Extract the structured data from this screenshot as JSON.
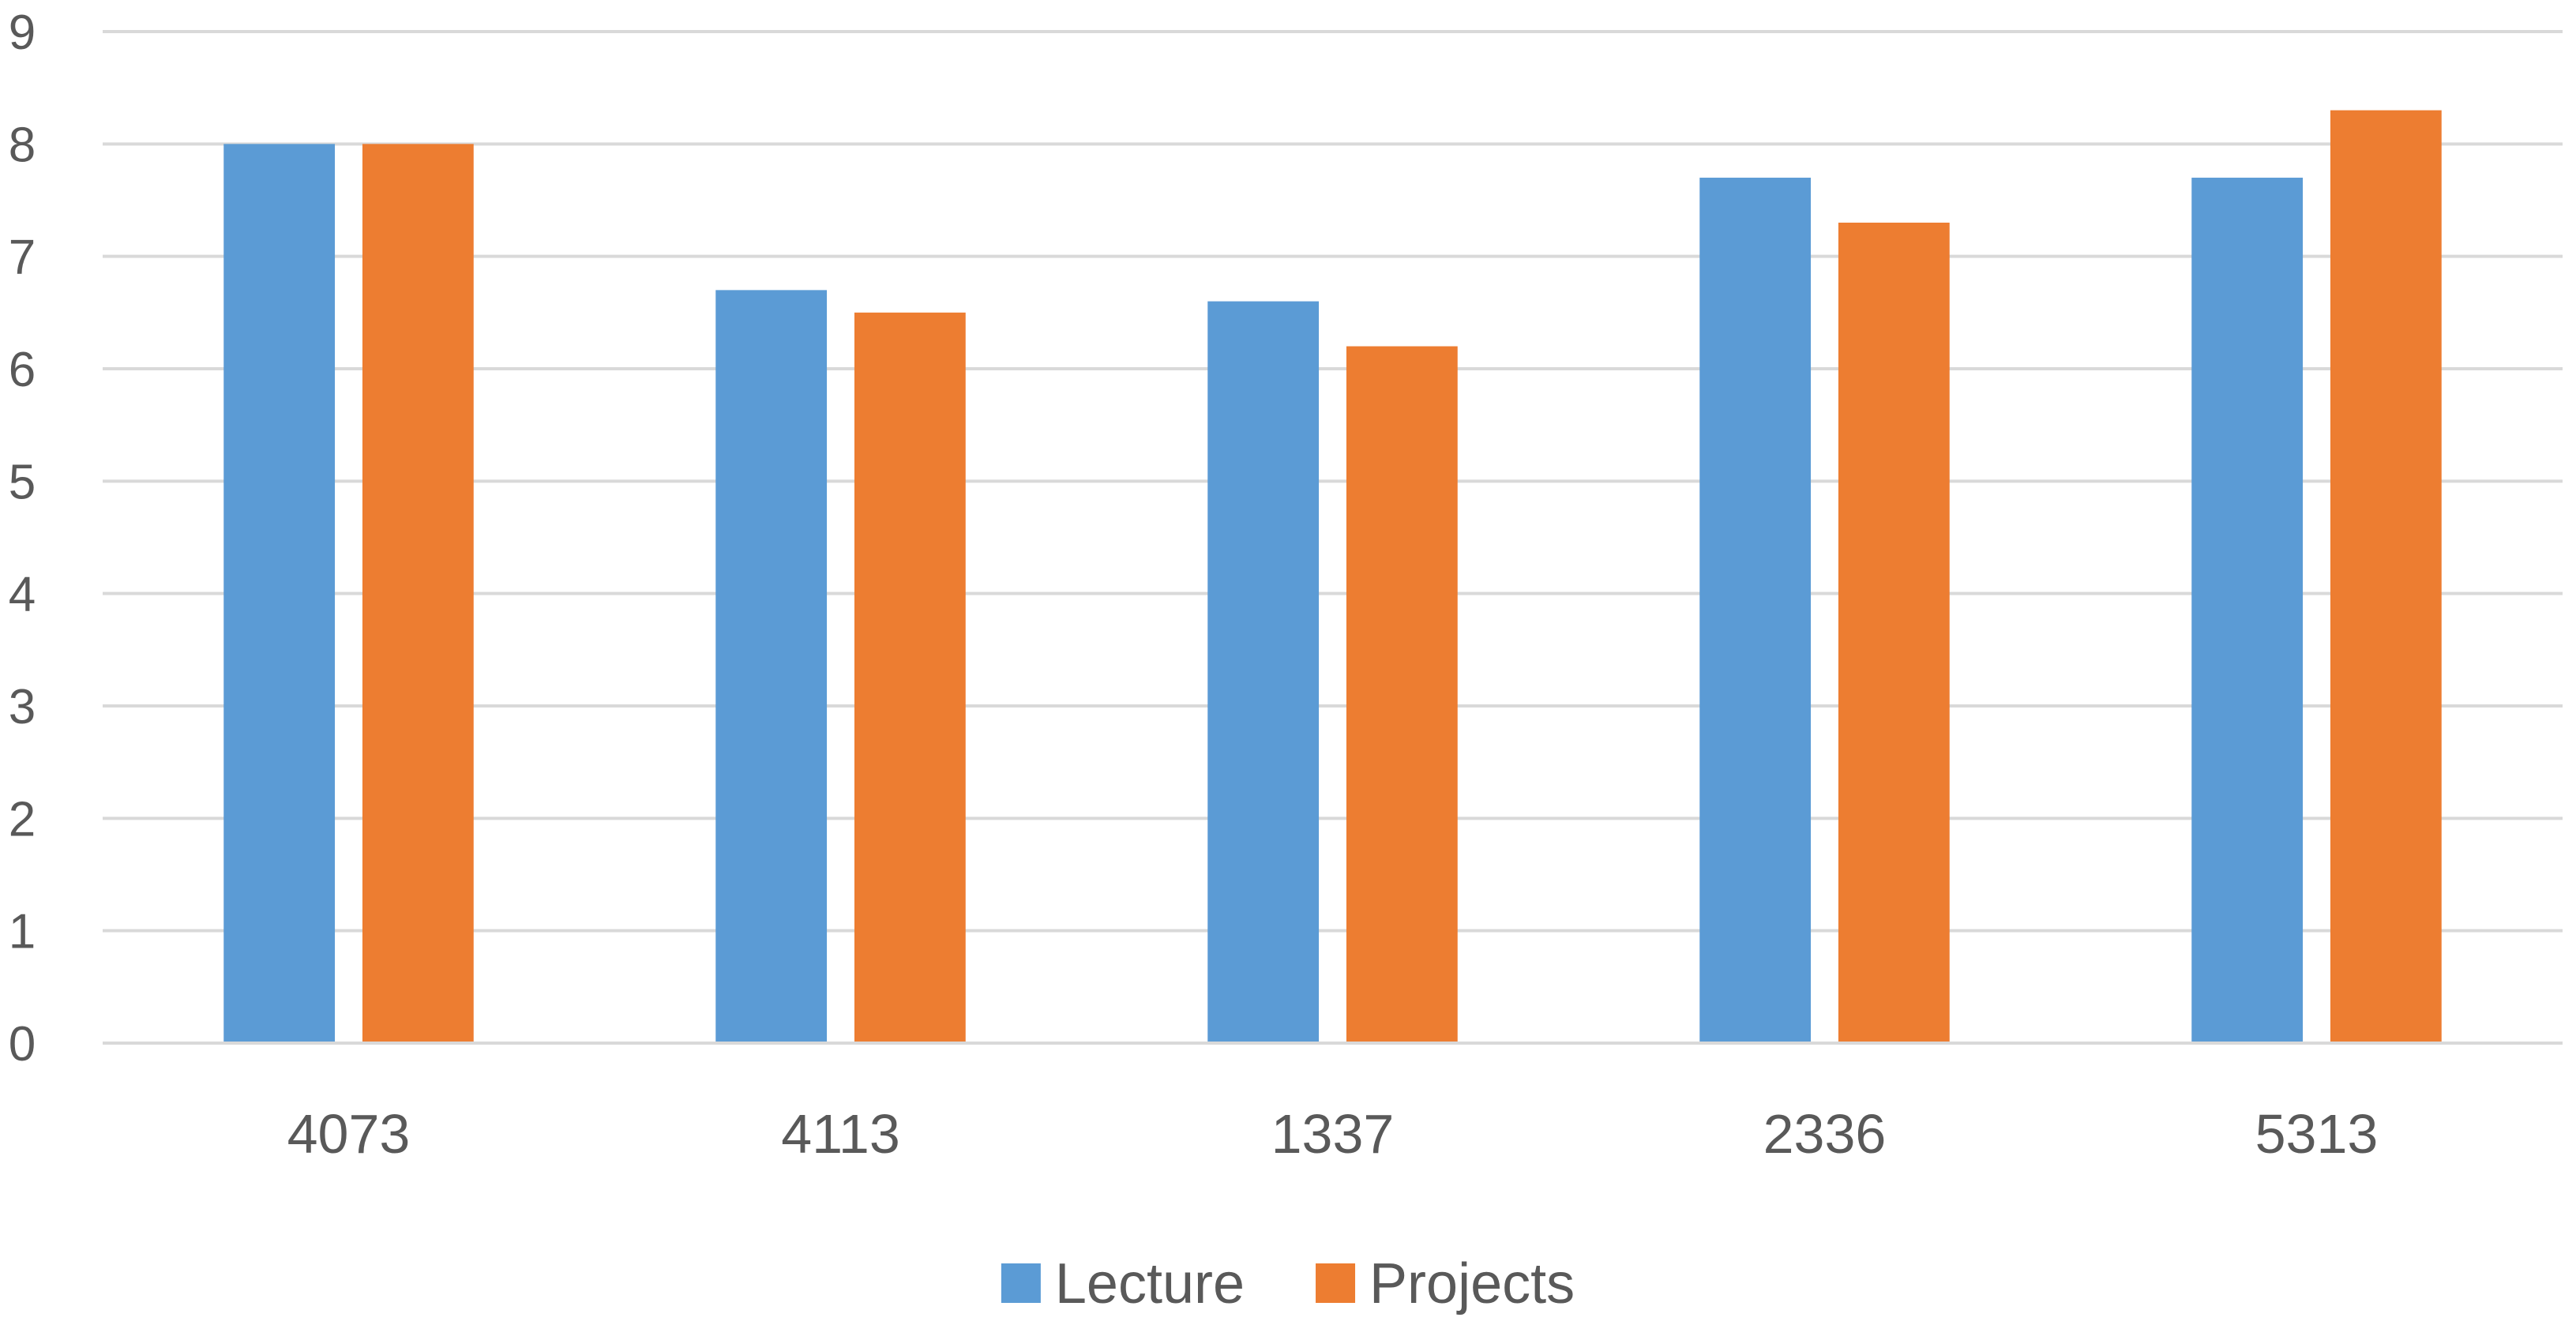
{
  "chart_data": {
    "type": "bar",
    "categories": [
      "4073",
      "4113",
      "1337",
      "2336",
      "5313"
    ],
    "series": [
      {
        "name": "Lecture",
        "color": "#5B9BD5",
        "values": [
          8.0,
          6.7,
          6.6,
          7.7,
          7.7
        ]
      },
      {
        "name": "Projects",
        "color": "#ED7D31",
        "values": [
          8.0,
          6.5,
          6.2,
          7.3,
          8.3
        ]
      }
    ],
    "ylim": [
      0,
      9
    ],
    "yticks": [
      0,
      1,
      2,
      3,
      4,
      5,
      6,
      7,
      8,
      9
    ],
    "grid": true,
    "gridline_color": "#D9D9D9",
    "legend": "bottom-center"
  }
}
